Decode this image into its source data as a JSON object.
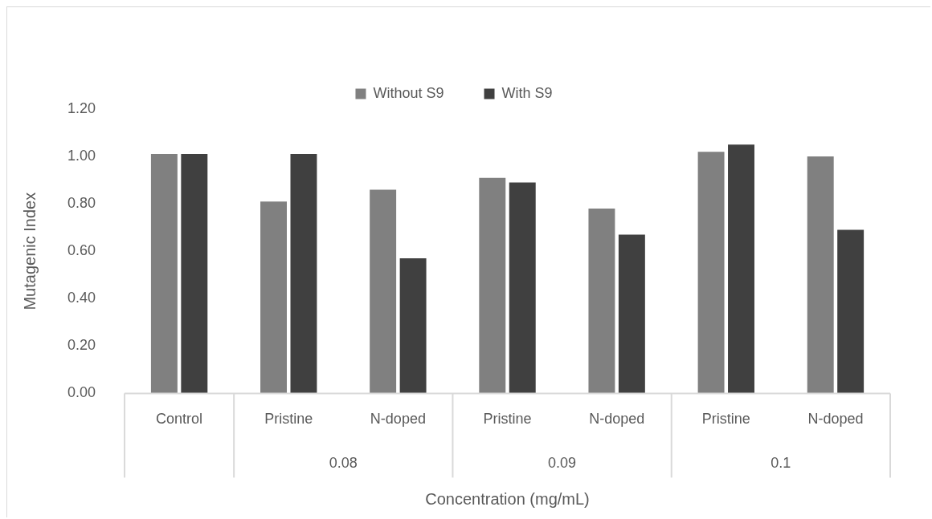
{
  "chart_data": {
    "type": "bar",
    "xlabel": "Concentration (mg/mL)",
    "ylabel": "Mutagenic Index",
    "categories": [
      "Control",
      "Pristine",
      "N-doped",
      "Pristine",
      "N-doped",
      "Pristine",
      "N-doped"
    ],
    "series": [
      {
        "name": "Without S9",
        "color": "#808080",
        "values": [
          1.01,
          0.81,
          0.86,
          0.91,
          0.78,
          1.02,
          1.0
        ]
      },
      {
        "name": "With S9",
        "color": "#404040",
        "values": [
          1.01,
          1.01,
          0.57,
          0.89,
          0.67,
          1.05,
          0.69
        ]
      }
    ],
    "ylim": [
      0,
      1.2
    ],
    "yticks": [
      {
        "value": 0,
        "label": "0.00"
      },
      {
        "value": 0.2,
        "label": "0.20"
      },
      {
        "value": 0.4,
        "label": "0.40"
      },
      {
        "value": 0.6,
        "label": "0.60"
      },
      {
        "value": 0.8,
        "label": "0.80"
      },
      {
        "value": 1,
        "label": "1.00"
      },
      {
        "value": 1.2,
        "label": "1.20"
      }
    ],
    "annotations": [
      "0.08",
      "0.09",
      "0.1"
    ],
    "grid": false,
    "legend": "top"
  }
}
